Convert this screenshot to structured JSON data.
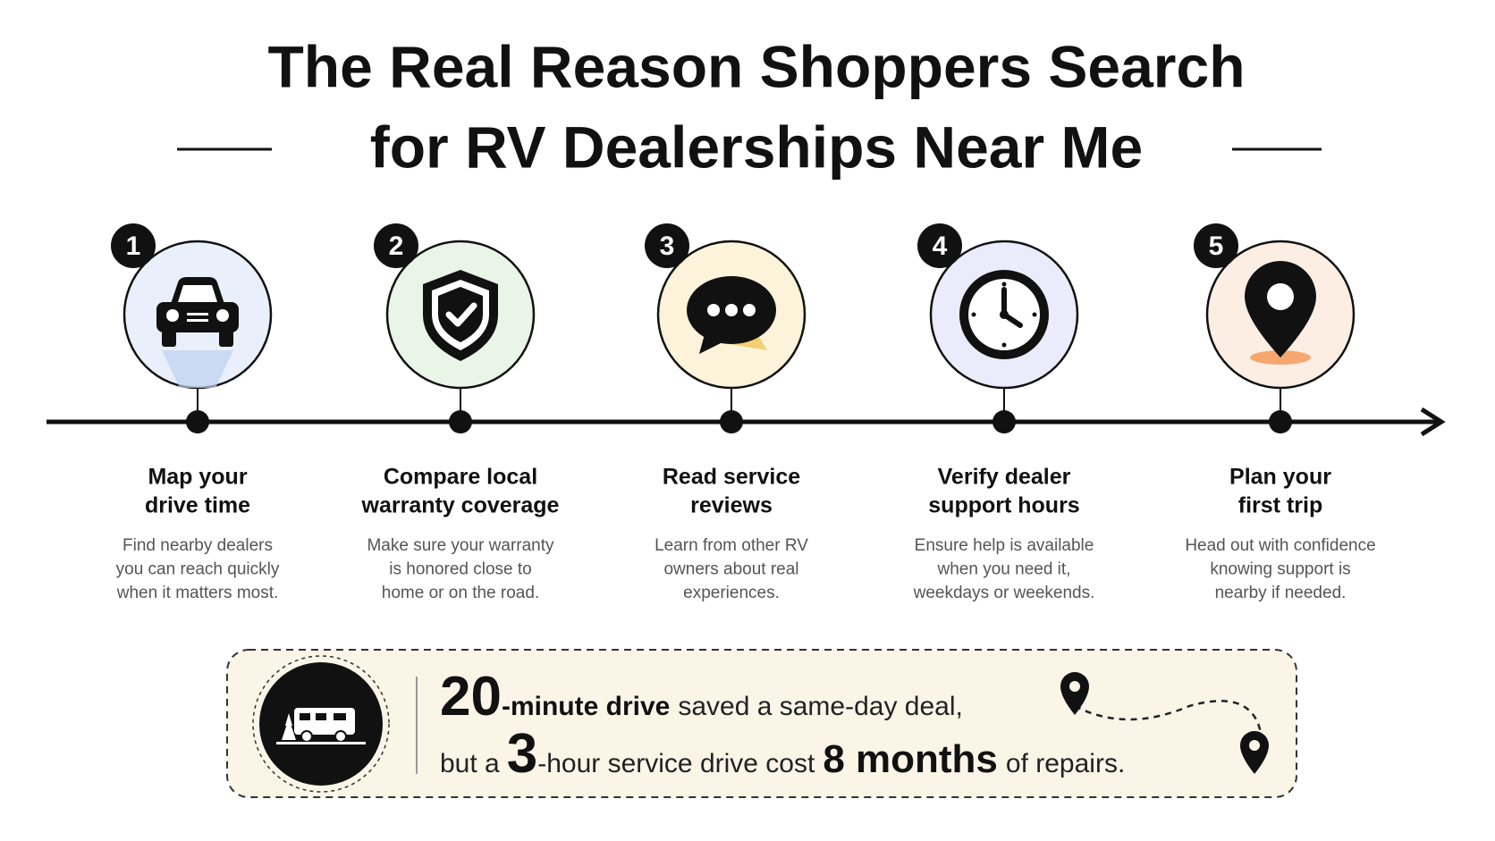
{
  "title": {
    "lines": [
      "The Real Reason Shoppers Search",
      "for RV Dealerships Near Me"
    ]
  },
  "steps": [
    {
      "number": "1",
      "title": [
        "Map your",
        "drive time"
      ],
      "description": [
        "Find nearby dealers",
        "you can reach quickly",
        "when it matters most."
      ]
    },
    {
      "number": "2",
      "title": [
        "Compare local",
        "warranty coverage"
      ],
      "description": [
        "Make sure your warranty",
        "is honored close to",
        "home or on the road."
      ]
    },
    {
      "number": "3",
      "title": [
        "Read service",
        "reviews"
      ],
      "description": [
        "Learn from other RV",
        "owners about real",
        "experiences."
      ]
    },
    {
      "number": "4",
      "title": [
        "Verify dealer",
        "support hours"
      ],
      "description": [
        "Ensure help is available",
        "when you need it,",
        "weekdays or weekends."
      ]
    },
    {
      "number": "5",
      "title": [
        "Plan your",
        "first trip"
      ],
      "description": [
        "Head out with confidence",
        "knowing support is",
        "nearby if needed."
      ]
    }
  ],
  "callout": {
    "line1": [
      "20",
      "-minute drive",
      "saved a same-day deal,"
    ],
    "line2": [
      "but a",
      "3",
      "-hour service drive cost",
      "8 months",
      "of repairs."
    ]
  }
}
